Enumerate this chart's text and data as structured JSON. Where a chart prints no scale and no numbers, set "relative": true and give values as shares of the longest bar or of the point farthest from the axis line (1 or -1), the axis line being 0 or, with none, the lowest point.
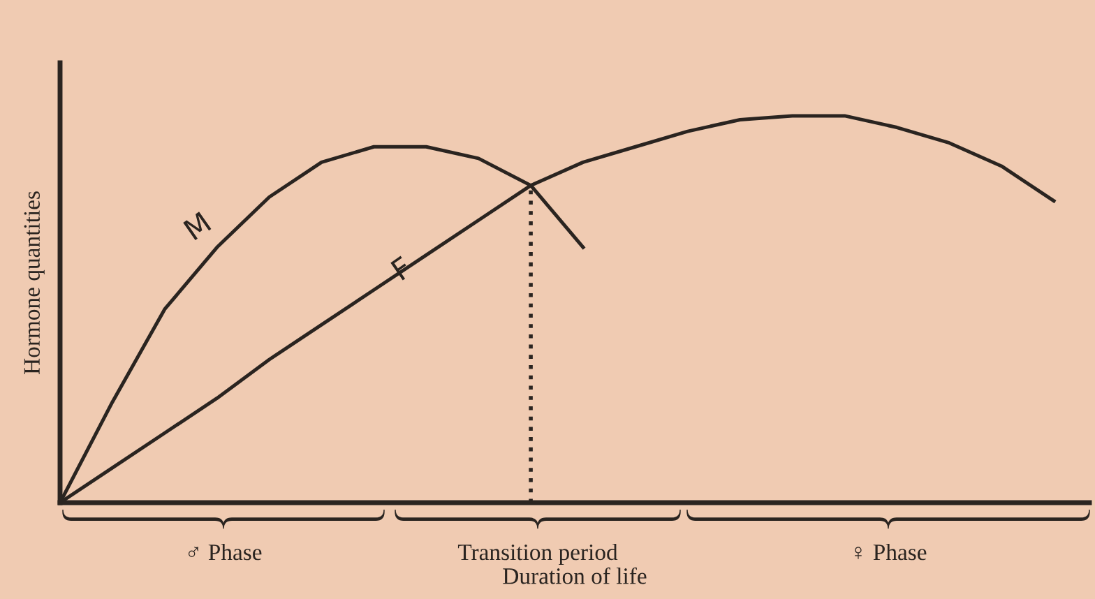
{
  "chart_data": {
    "type": "line",
    "relative": true,
    "ylabel": "Hormone quantities",
    "xlabel": "Duration of life",
    "categories": [
      null,
      null,
      null,
      null,
      null,
      null,
      null,
      null,
      null,
      null,
      null,
      null,
      null,
      null,
      null,
      null,
      null,
      null,
      null,
      null
    ],
    "series": [
      {
        "name": "M",
        "color": "#2a2420",
        "values": [
          0,
          0.26,
          0.5,
          0.66,
          0.79,
          0.88,
          0.92,
          0.92,
          0.89,
          0.82,
          0.66,
          null,
          null,
          null,
          null,
          null,
          null,
          null,
          null,
          null
        ]
      },
      {
        "name": "F",
        "color": "#2a2420",
        "values": [
          0,
          0.09,
          0.18,
          0.27,
          0.37,
          0.46,
          0.55,
          0.64,
          0.73,
          0.82,
          0.88,
          0.92,
          0.96,
          0.99,
          1.0,
          1.0,
          0.97,
          0.93,
          0.87,
          0.78
        ]
      }
    ],
    "annotations": [
      "♂ Phase",
      "Transition period",
      "♀ Phase"
    ],
    "grid": false,
    "legend": false,
    "marker": "none",
    "line_style": "solid"
  }
}
